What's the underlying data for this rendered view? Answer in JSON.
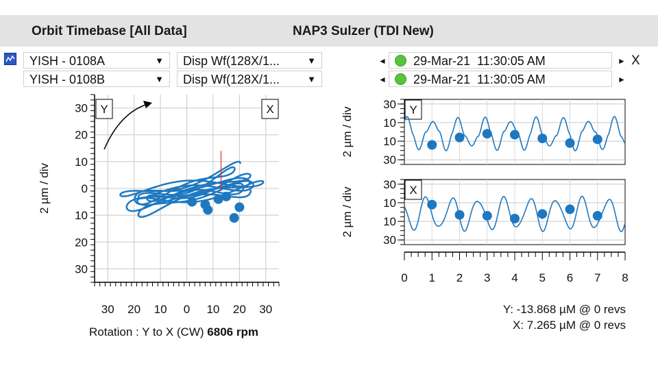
{
  "header": {
    "title_left": "Orbit Timebase [All Data]",
    "title_center": "NAP3 Sulzer (TDI New)"
  },
  "controls": {
    "channel_a": "YISH - 0108A",
    "channel_b": "YISH - 0108B",
    "waveform_a": "Disp Wf(128X/1...",
    "waveform_b": "Disp Wf(128X/1...",
    "date_1": "29-Mar-21",
    "time_1": "11:30:05 AM",
    "date_2": "29-Mar-21",
    "time_2": "11:30:05 AM",
    "close_label": "X",
    "arrow_left": "◄",
    "arrow_right": "►",
    "dropdown_arrow": "▼"
  },
  "icons": {
    "chart_icon": "chart-icon",
    "status_dot": "green-status-dot"
  },
  "colors": {
    "trace": "#1e78c0",
    "marker": "#1e78c0",
    "status_green": "#58c43c",
    "header_bg": "#e3e3e3"
  },
  "chart_data": [
    {
      "type": "scatter",
      "name": "orbit",
      "title": "Orbit",
      "x_probe_label": "X",
      "y_probe_label": "Y",
      "ylabel": "2 µm / div",
      "xlim": [
        -35,
        35
      ],
      "ylim": [
        -35,
        35
      ],
      "xticks": [
        -30,
        -20,
        -10,
        0,
        10,
        20,
        30
      ],
      "xtick_labels": [
        "30",
        "20",
        "10",
        "0",
        "10",
        "20",
        "30"
      ],
      "yticks": [
        30,
        20,
        10,
        0,
        -10,
        -20,
        -30
      ],
      "ytick_labels": [
        "30",
        "20",
        "10",
        "0",
        "10",
        "20",
        "30"
      ],
      "orbit_params": {
        "center_x": -1,
        "center_y": 2,
        "amp_x": 25,
        "amp_y": 6,
        "phase_y_deg": 90,
        "cycles": 7,
        "drift_x": 6,
        "drift_y": -6
      },
      "keyphasor_x": [
        2,
        7,
        8,
        12,
        15,
        18,
        20
      ],
      "keyphasor_y": [
        -5,
        -6,
        -8,
        -4,
        -3,
        -11,
        -7
      ],
      "cursor_line": {
        "x": 13,
        "y_from": -1,
        "y_to": 14
      },
      "rotation_text": "Rotation : Y to X (CW)",
      "speed_text": "6806 rpm"
    },
    {
      "type": "line",
      "name": "timebase_y",
      "probe_label": "Y",
      "ylabel": "2 µm / div",
      "xlim": [
        0,
        8
      ],
      "ylim": [
        -35,
        35
      ],
      "yticks": [
        30,
        10,
        -10,
        -30
      ],
      "ytick_labels": [
        "30",
        "10",
        "10",
        "30"
      ],
      "wave": {
        "offset": -2,
        "amp": 16,
        "cycles_per_rev": 1.06,
        "phase_deg": 60,
        "sharpness": 1.6
      },
      "keyphasor_x": [
        1,
        2,
        3,
        4,
        5,
        6,
        7
      ],
      "keyphasor_y": [
        -14,
        -6,
        -2,
        -3,
        -7,
        -12,
        -8
      ]
    },
    {
      "type": "line",
      "name": "timebase_x",
      "probe_label": "X",
      "ylabel": "2 µm / div",
      "xlim": [
        0,
        8
      ],
      "ylim": [
        -35,
        35
      ],
      "yticks": [
        30,
        10,
        -10,
        -30
      ],
      "ytick_labels": [
        "30",
        "10",
        "10",
        "30"
      ],
      "xticks": [
        0,
        1,
        2,
        3,
        4,
        5,
        6,
        7,
        8
      ],
      "xtick_labels": [
        "0",
        "1",
        "2",
        "3",
        "4",
        "5",
        "6",
        "7",
        "8"
      ],
      "wave": {
        "offset": -2,
        "amp": 16,
        "cycles_per_rev": 1.06,
        "phase_deg": 150,
        "sharpness": 1.0
      },
      "keyphasor_x": [
        1,
        2,
        3,
        4,
        5,
        6,
        7
      ],
      "keyphasor_y": [
        8,
        -3,
        -4,
        -7,
        -2,
        3,
        -4
      ]
    }
  ],
  "readouts": {
    "y": "Y: -13.868 µM @ 0 revs",
    "x": "X: 7.265 µM @ 0 revs"
  }
}
